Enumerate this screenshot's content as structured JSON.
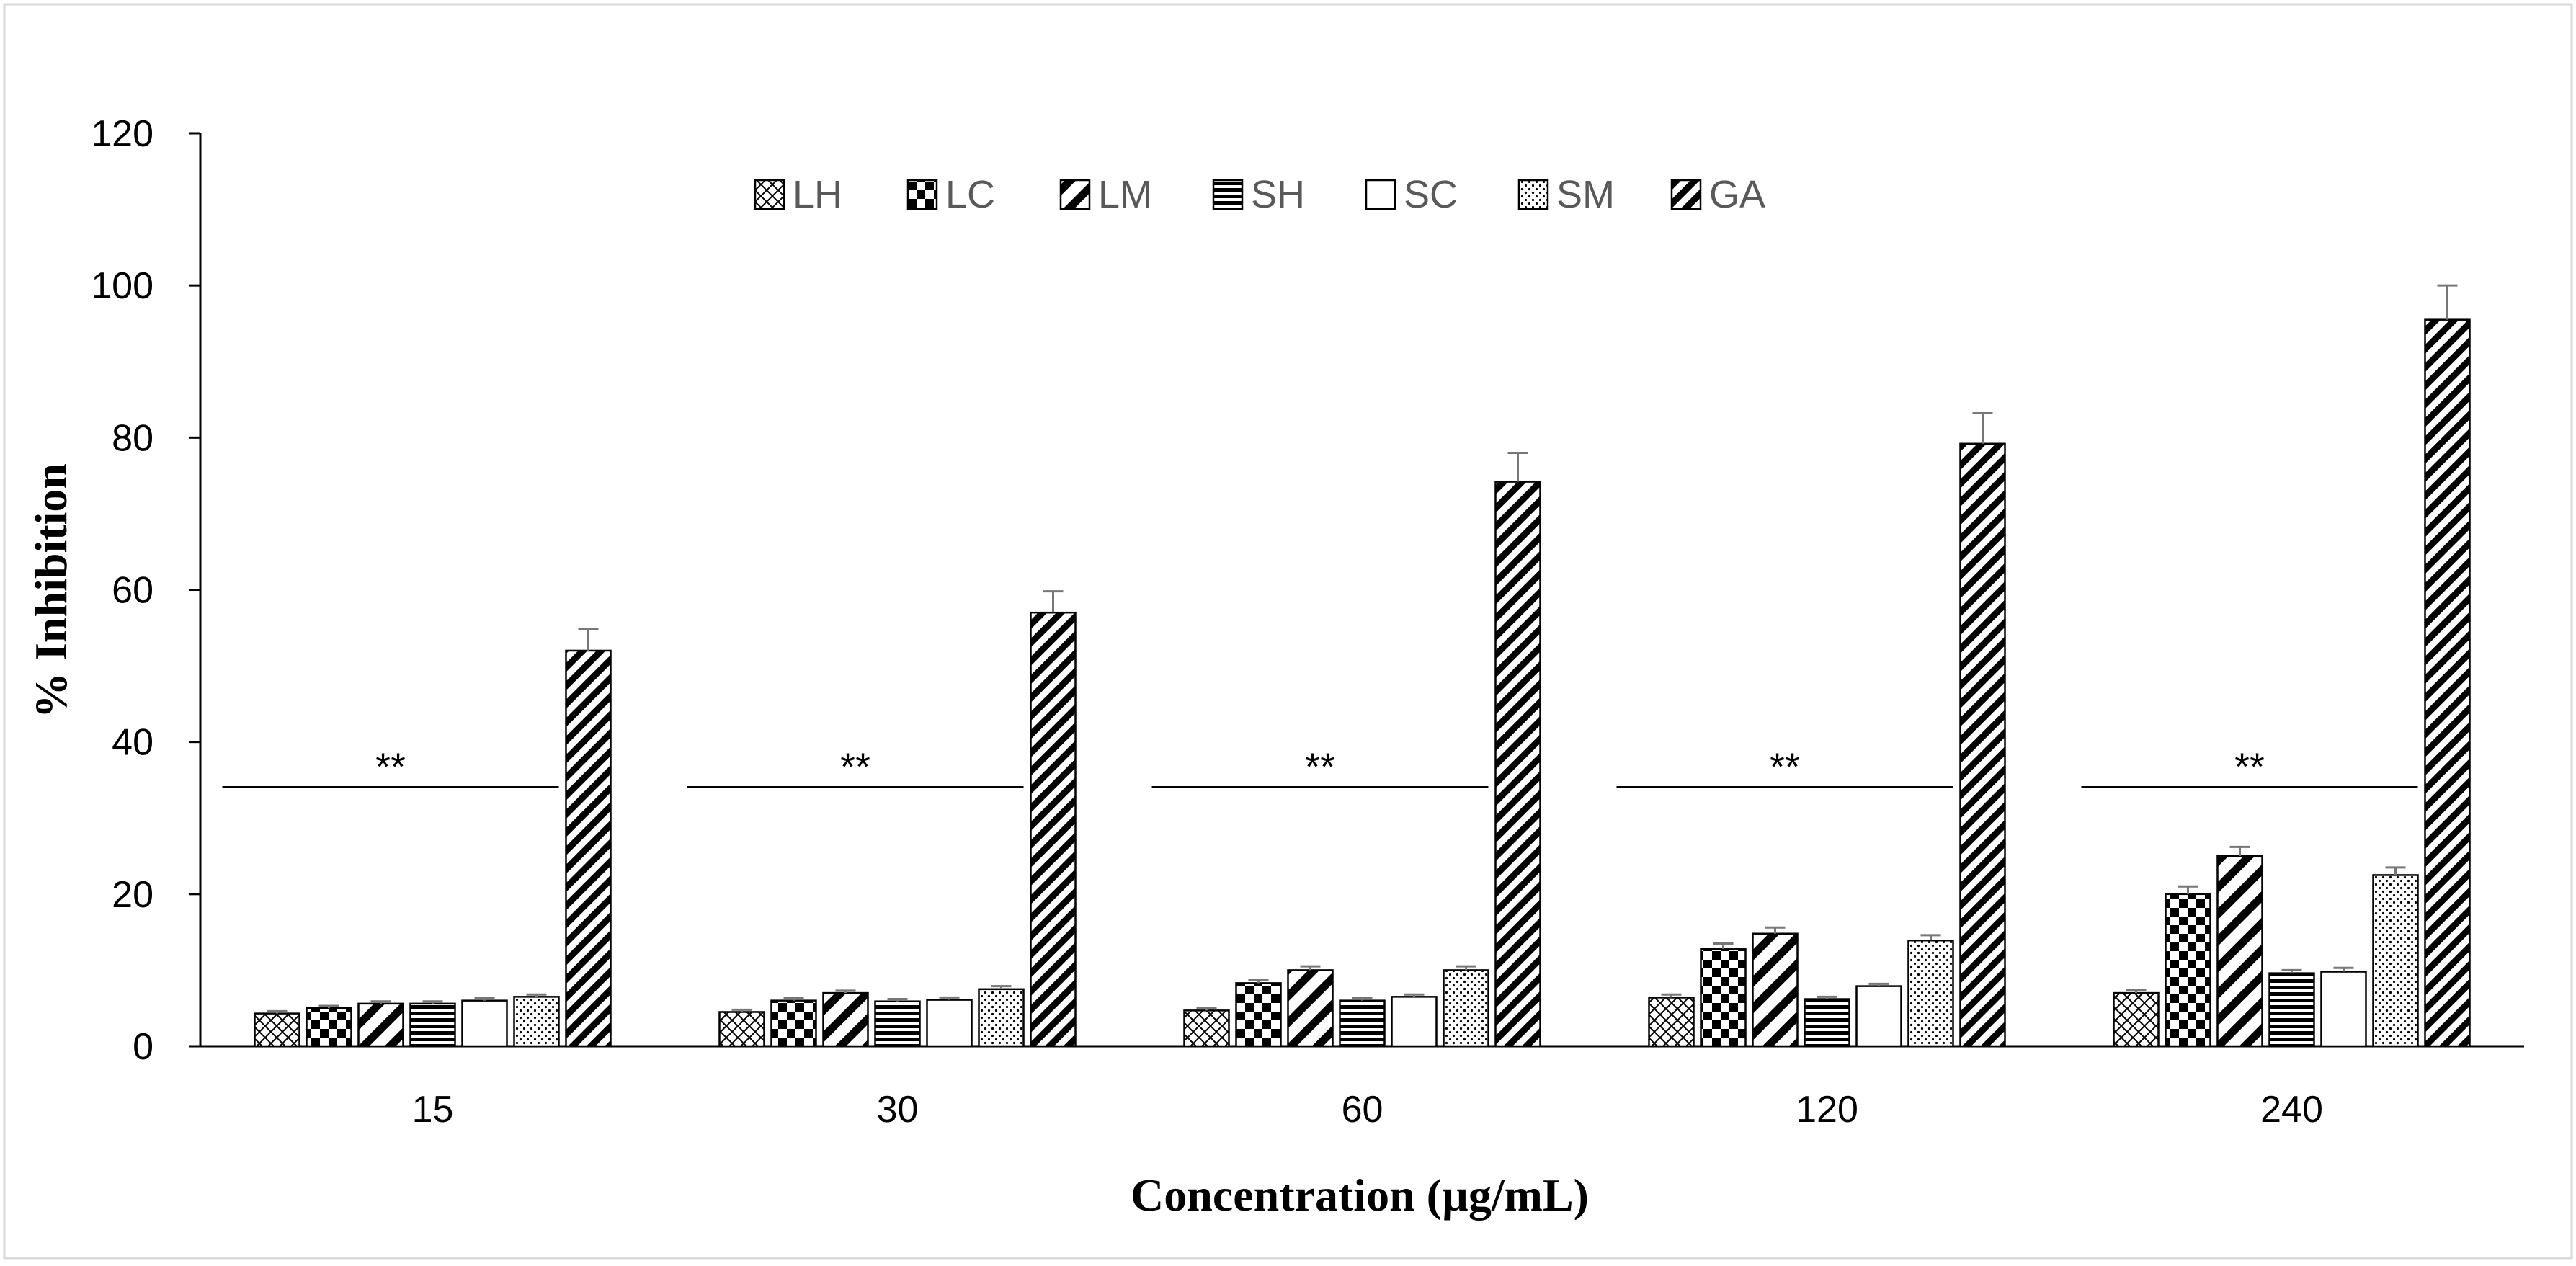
{
  "chart_data": {
    "type": "bar",
    "title": "",
    "xlabel": "Concentration (µg/mL)",
    "ylabel": "% Inhibition",
    "ylim": [
      0,
      120
    ],
    "yticks": [
      0,
      20,
      40,
      60,
      80,
      100,
      120
    ],
    "categories": [
      "15",
      "30",
      "60",
      "120",
      "240"
    ],
    "legend_position": "top-center",
    "series": [
      {
        "name": "LH",
        "pattern": "crosshatch",
        "values": [
          4.3,
          4.5,
          4.7,
          6.4,
          7.0
        ],
        "errors": [
          0.3,
          0.3,
          0.3,
          0.4,
          0.4
        ]
      },
      {
        "name": "LC",
        "pattern": "checker",
        "values": [
          5.0,
          6.0,
          8.3,
          12.8,
          20.0
        ],
        "errors": [
          0.3,
          0.3,
          0.4,
          0.7,
          1.0
        ]
      },
      {
        "name": "LM",
        "pattern": "wide-downward-diagonal",
        "values": [
          5.6,
          7.0,
          10.0,
          14.8,
          25.0
        ],
        "errors": [
          0.3,
          0.3,
          0.5,
          0.8,
          1.2
        ]
      },
      {
        "name": "SH",
        "pattern": "horizontal",
        "values": [
          5.6,
          5.9,
          6.0,
          6.2,
          9.6
        ],
        "errors": [
          0.3,
          0.3,
          0.3,
          0.3,
          0.4
        ]
      },
      {
        "name": "SC",
        "pattern": "solid-white",
        "values": [
          6.0,
          6.1,
          6.5,
          7.9,
          9.8
        ],
        "errors": [
          0.3,
          0.3,
          0.3,
          0.3,
          0.5
        ]
      },
      {
        "name": "SM",
        "pattern": "dots",
        "values": [
          6.5,
          7.5,
          10.0,
          13.9,
          22.5
        ],
        "errors": [
          0.3,
          0.4,
          0.5,
          0.7,
          1.0
        ]
      },
      {
        "name": "GA",
        "pattern": "dense-downward-diagonal",
        "values": [
          52.0,
          57.0,
          74.2,
          79.2,
          95.5
        ],
        "errors": [
          2.8,
          2.8,
          3.8,
          4.0,
          4.5
        ]
      }
    ],
    "annotations": [
      {
        "category": "15",
        "text": "**",
        "level": 35
      },
      {
        "category": "30",
        "text": "**",
        "level": 35
      },
      {
        "category": "60",
        "text": "**",
        "level": 35
      },
      {
        "category": "120",
        "text": "**",
        "level": 35
      },
      {
        "category": "240",
        "text": "**",
        "level": 35
      }
    ]
  }
}
